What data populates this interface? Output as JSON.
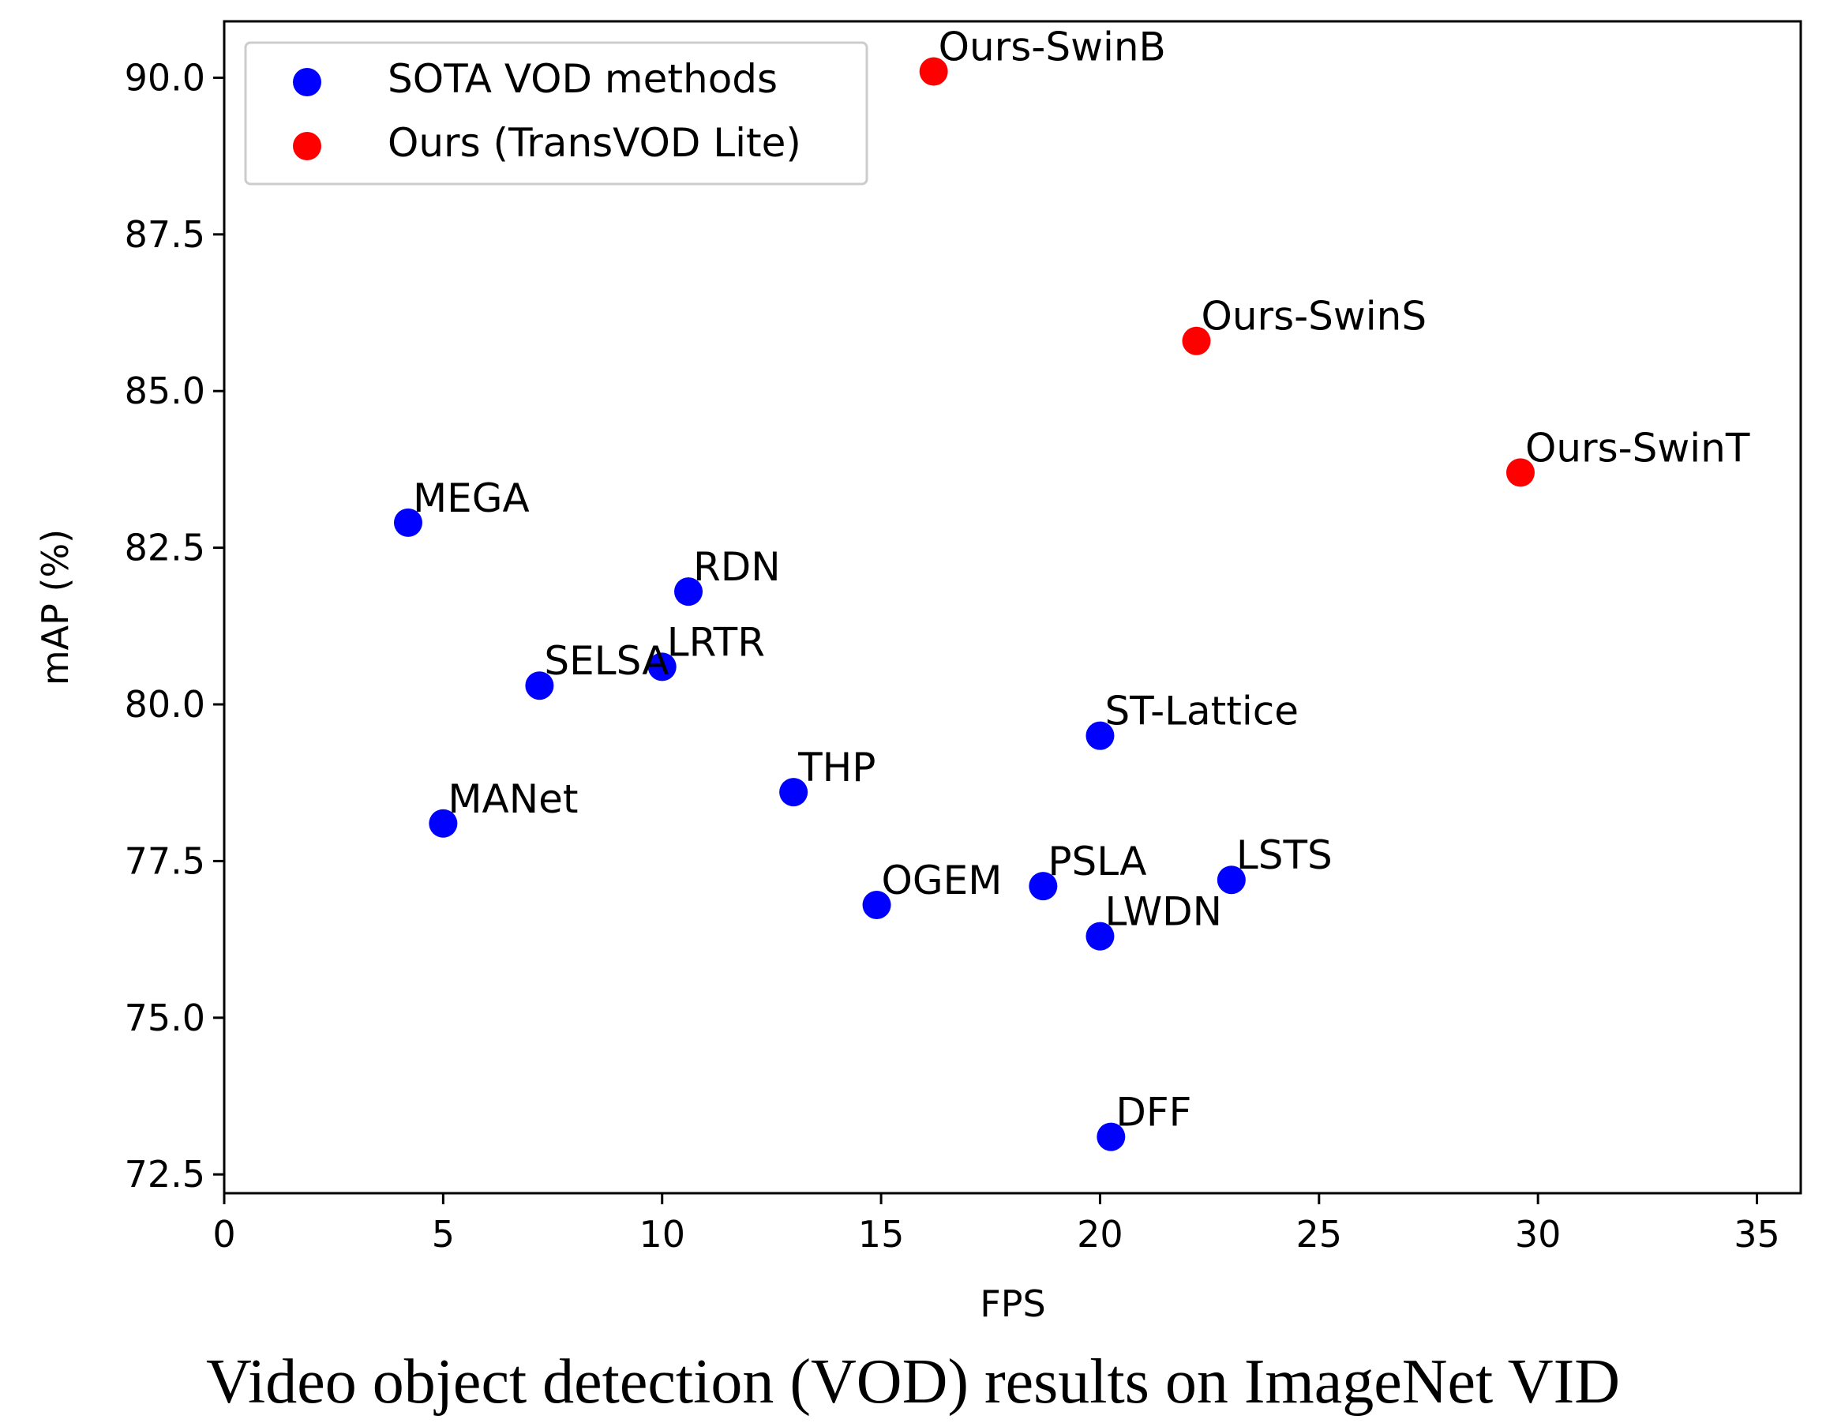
{
  "chart_data": {
    "type": "scatter",
    "xlabel": "FPS",
    "ylabel": "mAP (%)",
    "xlim": [
      0,
      36
    ],
    "ylim": [
      72.2,
      90.9
    ],
    "xticks": [
      0,
      5,
      10,
      15,
      20,
      25,
      30,
      35
    ],
    "xtick_labels": [
      "0",
      "5",
      "10",
      "15",
      "20",
      "25",
      "30",
      "35"
    ],
    "yticks": [
      72.5,
      75.0,
      77.5,
      80.0,
      82.5,
      85.0,
      87.5,
      90.0
    ],
    "ytick_labels": [
      "72.5",
      "75.0",
      "77.5",
      "80.0",
      "82.5",
      "85.0",
      "87.5",
      "90.0"
    ],
    "legend_position": "top-left",
    "series": [
      {
        "name": "SOTA VOD methods",
        "color": "#0000ff",
        "points": [
          {
            "label": "MEGA",
            "x": 4.2,
            "y": 82.9
          },
          {
            "label": "RDN",
            "x": 10.6,
            "y": 81.8
          },
          {
            "label": "LRTR",
            "x": 10.0,
            "y": 80.6
          },
          {
            "label": "SELSA",
            "x": 7.2,
            "y": 80.3
          },
          {
            "label": "MANet",
            "x": 5.0,
            "y": 78.1
          },
          {
            "label": "THP",
            "x": 13.0,
            "y": 78.6
          },
          {
            "label": "ST-Lattice",
            "x": 20.0,
            "y": 79.5
          },
          {
            "label": "OGEM",
            "x": 14.9,
            "y": 76.8
          },
          {
            "label": "PSLA",
            "x": 18.7,
            "y": 77.1
          },
          {
            "label": "LSTS",
            "x": 23.0,
            "y": 77.2
          },
          {
            "label": "LWDN",
            "x": 20.0,
            "y": 76.3
          },
          {
            "label": "DFF",
            "x": 20.25,
            "y": 73.1
          }
        ]
      },
      {
        "name": "Ours (TransVOD Lite)",
        "color": "#ff0000",
        "points": [
          {
            "label": "Ours-SwinB",
            "x": 16.2,
            "y": 90.1
          },
          {
            "label": "Ours-SwinS",
            "x": 22.2,
            "y": 85.8
          },
          {
            "label": "Ours-SwinT",
            "x": 29.6,
            "y": 83.7
          }
        ]
      }
    ]
  },
  "caption": "Video object detection (VOD) results on ImageNet VID"
}
